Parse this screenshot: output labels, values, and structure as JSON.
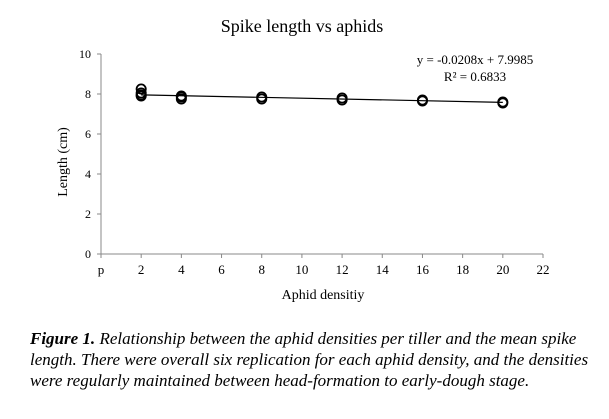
{
  "chart_data": {
    "type": "scatter",
    "title": "Spike length vs aphids",
    "xlabel": "Aphid densitiy",
    "ylabel": "Length (cm)",
    "xlim": [
      0,
      22
    ],
    "ylim": [
      0,
      10
    ],
    "x_ticks": [
      0,
      2,
      4,
      6,
      8,
      10,
      12,
      14,
      16,
      18,
      20,
      22
    ],
    "x_tick_labels": [
      "p",
      "2",
      "4",
      "6",
      "8",
      "10",
      "12",
      "14",
      "16",
      "18",
      "20",
      "22"
    ],
    "y_ticks": [
      0,
      2,
      4,
      6,
      8,
      10
    ],
    "y_tick_labels": [
      "0",
      "2",
      "4",
      "6",
      "8",
      "10"
    ],
    "points": [
      {
        "x": 2,
        "y": 8.25
      },
      {
        "x": 2,
        "y": 8.05
      },
      {
        "x": 2,
        "y": 7.95
      },
      {
        "x": 2,
        "y": 7.9
      },
      {
        "x": 4,
        "y": 7.9
      },
      {
        "x": 4,
        "y": 7.85
      },
      {
        "x": 4,
        "y": 7.75
      },
      {
        "x": 8,
        "y": 7.85
      },
      {
        "x": 8,
        "y": 7.75
      },
      {
        "x": 12,
        "y": 7.8
      },
      {
        "x": 12,
        "y": 7.7
      },
      {
        "x": 16,
        "y": 7.7
      },
      {
        "x": 16,
        "y": 7.65
      },
      {
        "x": 20,
        "y": 7.6
      },
      {
        "x": 20,
        "y": 7.55
      }
    ],
    "trendline": {
      "type": "linear",
      "slope": -0.0208,
      "intercept": 7.9985,
      "x_range": [
        2,
        20
      ]
    },
    "annotations": {
      "equation": "y = -0.0208x + 7.9985",
      "r_squared": "R² = 0.6833"
    },
    "grid": false,
    "legend": "none"
  },
  "caption": {
    "label": "Figure 1.",
    "text": " Relationship between the aphid densities per tiller and the mean spike length. There were overall six replication for each aphid density, and the densities were regularly maintained between head-formation to early-dough stage."
  }
}
